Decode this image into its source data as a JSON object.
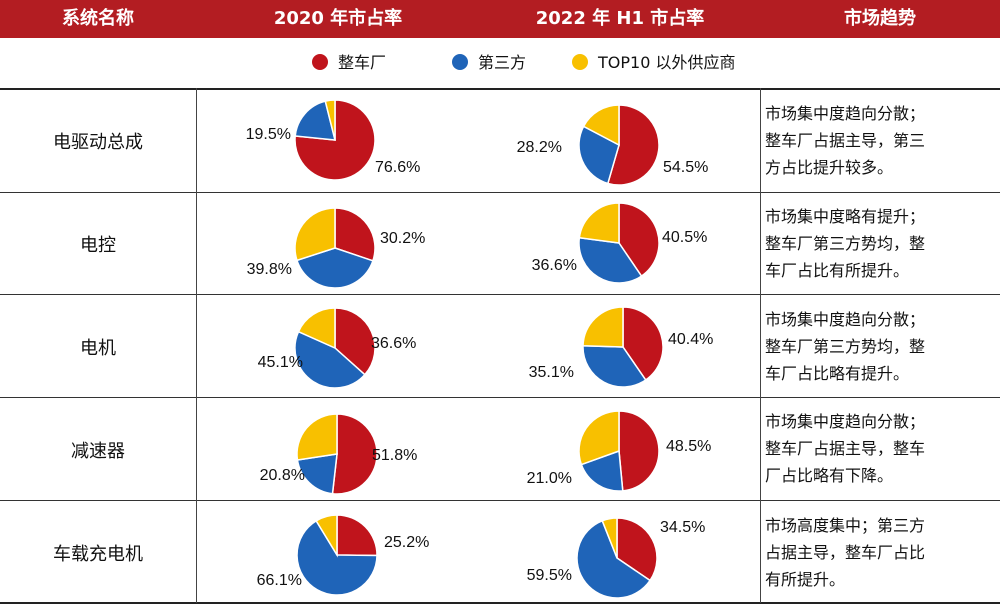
{
  "header": {
    "col_system": "系统名称",
    "col_2020": "2020 年市占率",
    "col_2022": "2022 年 H1 市占率",
    "col_trend": "市场趋势"
  },
  "legend": [
    {
      "name": "整车厂",
      "color": "#c0141c"
    },
    {
      "name": "第三方",
      "color": "#1f64b8"
    },
    {
      "name": "TOP10 以外供应商",
      "color": "#f8c000"
    }
  ],
  "rows": [
    {
      "system": "电驱动总成",
      "trend": [
        "市场集中度趋向分散；",
        "整车厂占据主导，第三",
        "方占比提升较多。"
      ]
    },
    {
      "system": "电控",
      "trend": [
        "市场集中度略有提升；",
        "整车厂第三方势均，整",
        "车厂占比有所提升。"
      ]
    },
    {
      "system": "电机",
      "trend": [
        "市场集中度趋向分散；",
        "整车厂第三方势均，整",
        "车厂占比略有提升。"
      ]
    },
    {
      "system": "减速器",
      "trend": [
        "市场集中度趋向分散；",
        "整车厂占据主导，整车",
        "厂占比略有下降。"
      ]
    },
    {
      "system": "车载充电机",
      "trend": [
        "市场高度集中；第三方",
        "占据主导，整车厂占比",
        "有所提升。"
      ]
    }
  ],
  "chart_data": [
    {
      "type": "pie",
      "system": "电驱动总成",
      "period": "2020",
      "categories": [
        "整车厂",
        "第三方",
        "TOP10 以外供应商"
      ],
      "values": [
        76.6,
        19.5,
        3.9
      ],
      "labels": [
        "76.6%",
        "19.5%",
        ""
      ]
    },
    {
      "type": "pie",
      "system": "电驱动总成",
      "period": "2022 H1",
      "categories": [
        "整车厂",
        "第三方",
        "TOP10 以外供应商"
      ],
      "values": [
        54.5,
        28.2,
        17.3
      ],
      "labels": [
        "54.5%",
        "28.2%",
        ""
      ]
    },
    {
      "type": "pie",
      "system": "电控",
      "period": "2020",
      "categories": [
        "整车厂",
        "第三方",
        "TOP10 以外供应商"
      ],
      "values": [
        30.2,
        39.8,
        30.0
      ],
      "labels": [
        "30.2%",
        "39.8%",
        ""
      ]
    },
    {
      "type": "pie",
      "system": "电控",
      "period": "2022 H1",
      "categories": [
        "整车厂",
        "第三方",
        "TOP10 以外供应商"
      ],
      "values": [
        40.5,
        36.6,
        22.9
      ],
      "labels": [
        "40.5%",
        "36.6%",
        ""
      ]
    },
    {
      "type": "pie",
      "system": "电机",
      "period": "2020",
      "categories": [
        "整车厂",
        "第三方",
        "TOP10 以外供应商"
      ],
      "values": [
        36.6,
        45.1,
        18.3
      ],
      "labels": [
        "36.6%",
        "45.1%",
        ""
      ]
    },
    {
      "type": "pie",
      "system": "电机",
      "period": "2022 H1",
      "categories": [
        "整车厂",
        "第三方",
        "TOP10 以外供应商"
      ],
      "values": [
        40.4,
        35.1,
        24.5
      ],
      "labels": [
        "40.4%",
        "35.1%",
        ""
      ]
    },
    {
      "type": "pie",
      "system": "减速器",
      "period": "2020",
      "categories": [
        "整车厂",
        "第三方",
        "TOP10 以外供应商"
      ],
      "values": [
        51.8,
        20.8,
        27.4
      ],
      "labels": [
        "51.8%",
        "20.8%",
        ""
      ]
    },
    {
      "type": "pie",
      "system": "减速器",
      "period": "2022 H1",
      "categories": [
        "整车厂",
        "第三方",
        "TOP10 以外供应商"
      ],
      "values": [
        48.5,
        21.0,
        30.5
      ],
      "labels": [
        "48.5%",
        "21.0%",
        ""
      ]
    },
    {
      "type": "pie",
      "system": "车载充电机",
      "period": "2020",
      "categories": [
        "整车厂",
        "第三方",
        "TOP10 以外供应商"
      ],
      "values": [
        25.2,
        66.1,
        8.7
      ],
      "labels": [
        "25.2%",
        "66.1%",
        ""
      ]
    },
    {
      "type": "pie",
      "system": "车载充电机",
      "period": "2022 H1",
      "categories": [
        "整车厂",
        "第三方",
        "TOP10 以外供应商"
      ],
      "values": [
        34.5,
        59.5,
        6.0
      ],
      "labels": [
        "34.5%",
        "59.5%",
        ""
      ]
    }
  ]
}
